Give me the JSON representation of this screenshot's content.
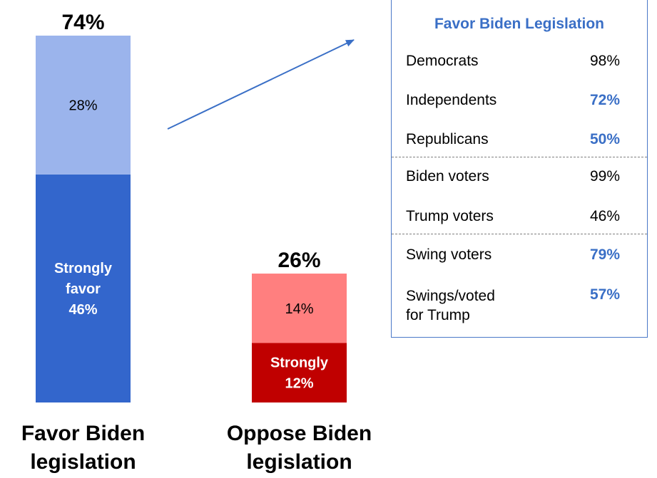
{
  "chart_data": {
    "type": "bar",
    "stacked": true,
    "categories": [
      "Favor Biden legislation",
      "Oppose Biden legislation"
    ],
    "bars": [
      {
        "category": "Favor Biden legislation",
        "total_label": "74%",
        "total": 74,
        "color_strong": "#3366cc",
        "color_soft": "#9bb4ec",
        "segments": [
          {
            "name_lines": [
              "Strongly",
              "favor"
            ],
            "value": 46,
            "label": "46%",
            "color": "#3366cc"
          },
          {
            "name_lines": [],
            "value": 28,
            "label": "28%",
            "color": "#9bb4ec"
          }
        ]
      },
      {
        "category": "Oppose Biden legislation",
        "total_label": "26%",
        "total": 26,
        "color_strong": "#c00000",
        "color_soft": "#ff7f7f",
        "segments": [
          {
            "name_lines": [
              "Strongly"
            ],
            "value": 12,
            "label": "12%",
            "color": "#c00000"
          },
          {
            "name_lines": [],
            "value": 14,
            "label": "14%",
            "color": "#ff7f7f"
          }
        ]
      }
    ],
    "category_label_lines": [
      [
        "Favor Biden",
        "legislation"
      ],
      [
        "Oppose Biden",
        "legislation"
      ]
    ],
    "arrow_color": "#3a6fc6",
    "panel": {
      "title": "Favor Biden Legislation",
      "accent_color": "#3a6fc6",
      "groups": [
        [
          {
            "label": "Democrats",
            "value": "98%",
            "highlight": false
          },
          {
            "label": "Independents",
            "value": "72%",
            "highlight": true
          },
          {
            "label": "Republicans",
            "value": "50%",
            "highlight": true
          }
        ],
        [
          {
            "label": "Biden voters",
            "value": "99%",
            "highlight": false
          },
          {
            "label": "Trump voters",
            "value": "46%",
            "highlight": false
          }
        ],
        [
          {
            "label": "Swing voters",
            "value": "79%",
            "highlight": true
          },
          {
            "label": "Swings/voted for Trump",
            "label_lines": [
              "Swings/voted",
              "for Trump"
            ],
            "value": "57%",
            "highlight": true
          }
        ]
      ]
    }
  }
}
